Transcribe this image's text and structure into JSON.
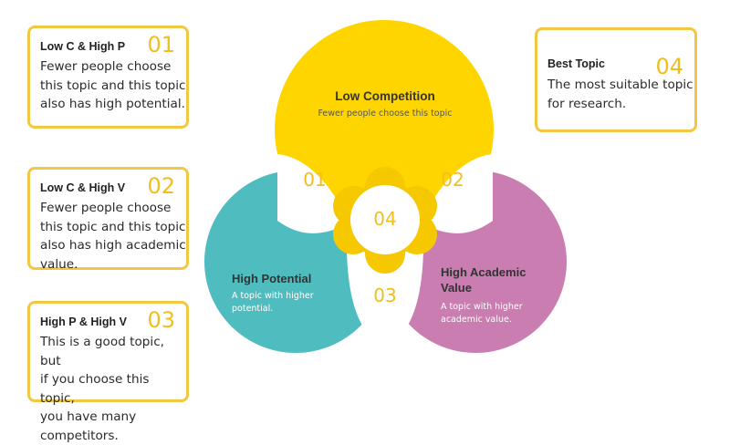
{
  "cards": [
    {
      "title": "Low C & High P",
      "num": "01",
      "lines": [
        "Fewer people choose",
        "this topic and this topic",
        "also has high potential."
      ]
    },
    {
      "title": "Low C & High V",
      "num": "02",
      "lines": [
        "Fewer people choose",
        "this topic and this topic",
        "also has high academic",
        "value."
      ]
    },
    {
      "title": "High P & High V",
      "num": "03",
      "lines": [
        "This is a good topic, but",
        "if you choose this topic,",
        "you have many",
        "competitors."
      ]
    },
    {
      "title": "Best Topic",
      "num": "04",
      "lines": [
        "The most suitable topic",
        "for research."
      ]
    }
  ],
  "venn": {
    "top": {
      "title": "Low Competition",
      "subtitle": "Fewer people choose this topic"
    },
    "left": {
      "title": "High Potential",
      "subtitle_lines": [
        "A topic with higher",
        "potential."
      ]
    },
    "right": {
      "title_lines": [
        "High Academic",
        "Value"
      ],
      "subtitle_lines": [
        "A topic with higher",
        "academic value."
      ]
    },
    "overlaps": {
      "lc_hp": "01",
      "lc_hv": "02",
      "hp_hv": "03",
      "center": "04"
    }
  },
  "colors": {
    "accent_yellow": "#ffd500",
    "card_border": "#f2c744",
    "number_yellow": "#f0bf1e",
    "teal": "#4fbdc0",
    "pink": "#c97db0",
    "center_yellow": "#f5c800"
  }
}
